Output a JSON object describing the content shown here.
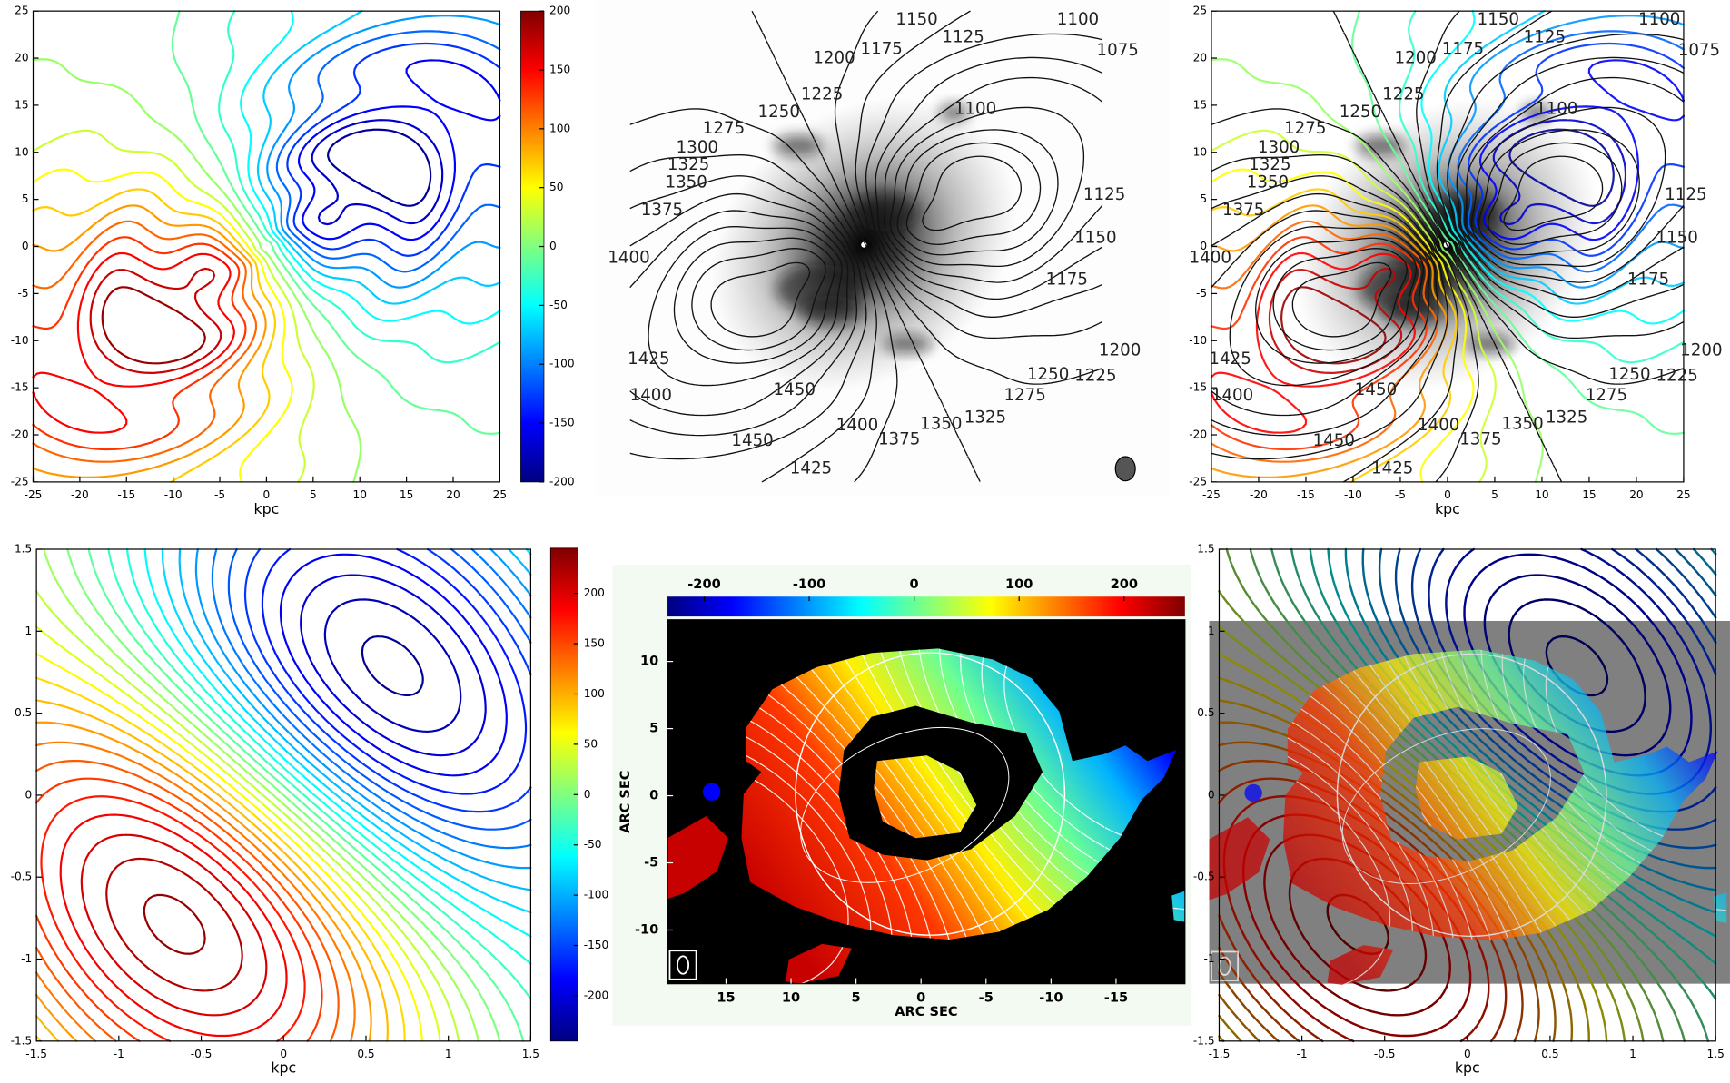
{
  "chart_data": [
    {
      "type": "contour",
      "xlim": [
        -25,
        25
      ],
      "ylim": [
        -25,
        25
      ],
      "xticks": [
        -25,
        -20,
        -15,
        -10,
        -5,
        0,
        5,
        10,
        15,
        20,
        25
      ],
      "yticks": [
        -25,
        -20,
        -15,
        -10,
        -5,
        0,
        5,
        10,
        15,
        20,
        25
      ],
      "xlabel": "kpc",
      "colorbar": {
        "lim": [
          -200,
          200
        ],
        "ticks": [
          -200,
          -150,
          -100,
          -50,
          0,
          50,
          100,
          150,
          200
        ]
      }
    },
    {
      "type": "image",
      "contour_labels": [
        1150,
        1125,
        1100,
        1075,
        1200,
        1175,
        1225,
        1250,
        1100,
        1275,
        1300,
        1325,
        1350,
        1375,
        1400,
        1125,
        1150,
        1175,
        1200,
        1225,
        1250,
        1275,
        1325,
        1350,
        1375,
        1400,
        1425,
        1400,
        1450,
        1450,
        1425
      ]
    },
    {
      "type": "contour",
      "xlim": [
        -25,
        25
      ],
      "ylim": [
        -25,
        25
      ],
      "xticks": [
        -25,
        -20,
        -15,
        -10,
        -5,
        0,
        5,
        10,
        15,
        20,
        25
      ],
      "yticks": [
        -25,
        -20,
        -15,
        -10,
        -5,
        0,
        5,
        10,
        15,
        20,
        25
      ],
      "xlabel": "kpc",
      "contour_labels": [
        1150,
        1125,
        1100,
        1075,
        1200,
        1175,
        1225,
        1250,
        1100,
        1275,
        1300,
        1325,
        1350,
        1375,
        1400,
        1125,
        1150,
        1175,
        1200,
        1225,
        1250,
        1275,
        1325,
        1350,
        1375,
        1400,
        1425,
        1400,
        1450,
        1450,
        1425
      ]
    },
    {
      "type": "contour",
      "xlim": [
        -1.5,
        1.5
      ],
      "ylim": [
        -1.5,
        1.5
      ],
      "xticks": [
        -1.5,
        -1,
        -0.5,
        0,
        0.5,
        1,
        1.5
      ],
      "yticks": [
        -1.5,
        -1,
        -0.5,
        0,
        0.5,
        1,
        1.5
      ],
      "xlabel": "kpc",
      "colorbar": {
        "lim": [
          -245,
          245
        ],
        "ticks": [
          -200,
          -150,
          -100,
          -50,
          0,
          50,
          100,
          150,
          200
        ]
      }
    },
    {
      "type": "heatmap",
      "xlim": [
        19.5,
        -20.3
      ],
      "ylim": [
        -14,
        13.1
      ],
      "xticks": [
        15,
        10,
        5,
        0,
        -5,
        -10,
        -15
      ],
      "yticks": [
        10,
        5,
        0,
        -5,
        -10
      ],
      "xlabel": "ARC SEC",
      "ylabel": "ARC SEC",
      "colorbar": {
        "lim": [
          -235,
          258
        ],
        "ticks": [
          -200,
          -100,
          0,
          100,
          200
        ],
        "orientation": "horizontal"
      }
    },
    {
      "type": "contour",
      "xlim": [
        -1.5,
        1.5
      ],
      "ylim": [
        -1.5,
        1.5
      ],
      "xticks": [
        -1.5,
        -1,
        -0.5,
        0,
        0.5,
        1,
        1.5
      ],
      "yticks": [
        -1.5,
        -1,
        -0.5,
        0,
        0.5,
        1,
        1.5
      ],
      "xlabel": "kpc"
    }
  ]
}
